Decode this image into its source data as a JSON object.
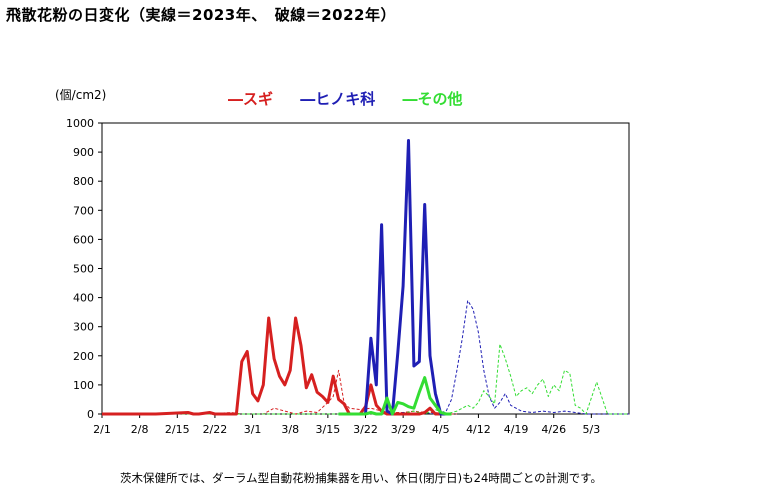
{
  "title": "飛散花粉の日変化（実線＝2023年、　破線＝2022年）",
  "chart_data": {
    "type": "line",
    "unit": "(個/cm2)",
    "ylim": [
      0,
      1000
    ],
    "yticks": [
      0,
      100,
      200,
      300,
      400,
      500,
      600,
      700,
      800,
      900,
      1000
    ],
    "xticks": [
      "2/1",
      "2/8",
      "2/15",
      "2/22",
      "3/1",
      "3/8",
      "3/15",
      "3/22",
      "3/29",
      "4/5",
      "4/12",
      "4/19",
      "4/26",
      "5/3"
    ],
    "x_range_days": [
      0,
      98
    ],
    "grid": false,
    "legend_position": "top",
    "legend": [
      {
        "label": "スギ",
        "color": "#d62020"
      },
      {
        "label": "ヒノキ科",
        "color": "#1f1fb4"
      },
      {
        "label": "その他",
        "color": "#33dd33"
      }
    ],
    "series": [
      {
        "name": "スギ",
        "year": "2023",
        "color": "#d62020",
        "dashed": false,
        "x": [
          0,
          10,
          16,
          17,
          18,
          20,
          21,
          22,
          25,
          26,
          27,
          28,
          29,
          30,
          31,
          32,
          33,
          34,
          35,
          36,
          37,
          38,
          39,
          40,
          41,
          42,
          43,
          44,
          45,
          46,
          47,
          48,
          49,
          50,
          51,
          52,
          53,
          54,
          55,
          56,
          57,
          58,
          59,
          60,
          61,
          62,
          63,
          64,
          65
        ],
        "y": [
          0,
          0,
          5,
          0,
          0,
          5,
          0,
          0,
          0,
          180,
          215,
          70,
          45,
          100,
          330,
          190,
          130,
          100,
          150,
          330,
          235,
          90,
          135,
          75,
          60,
          40,
          130,
          50,
          35,
          0,
          0,
          0,
          25,
          100,
          30,
          10,
          0,
          0,
          0,
          0,
          0,
          0,
          0,
          5,
          20,
          0,
          0,
          0,
          0
        ]
      },
      {
        "name": "ヒノキ科",
        "year": "2023",
        "color": "#1f1fb4",
        "dashed": false,
        "x": [
          44,
          46,
          48,
          49,
          50,
          51,
          52,
          53,
          54,
          55,
          56,
          57,
          58,
          59,
          60,
          61,
          62,
          63,
          64,
          65
        ],
        "y": [
          0,
          0,
          0,
          0,
          260,
          100,
          650,
          10,
          0,
          210,
          440,
          940,
          165,
          180,
          720,
          200,
          70,
          0,
          0,
          0
        ]
      },
      {
        "name": "その他",
        "year": "2023",
        "color": "#33dd33",
        "dashed": false,
        "x": [
          44,
          47,
          48,
          49,
          50,
          51,
          52,
          53,
          54,
          55,
          56,
          57,
          58,
          59,
          60,
          61,
          62,
          63,
          64,
          65
        ],
        "y": [
          0,
          0,
          0,
          0,
          5,
          0,
          0,
          55,
          0,
          40,
          35,
          25,
          20,
          75,
          125,
          55,
          30,
          5,
          0,
          0
        ]
      },
      {
        "name": "スギ",
        "year": "2022",
        "color": "#d62020",
        "dashed": true,
        "x": [
          0,
          20,
          24,
          26,
          28,
          30,
          32,
          35,
          36,
          38,
          40,
          42,
          43,
          44,
          45,
          46,
          48,
          50,
          52,
          54,
          56,
          58,
          60,
          62,
          64,
          66
        ],
        "y": [
          0,
          0,
          5,
          0,
          0,
          0,
          20,
          5,
          0,
          10,
          5,
          40,
          60,
          150,
          40,
          20,
          15,
          20,
          10,
          5,
          5,
          10,
          5,
          5,
          0,
          0
        ]
      },
      {
        "name": "ヒノキ科",
        "year": "2022",
        "color": "#1f1fb4",
        "dashed": true,
        "x": [
          0,
          54,
          56,
          58,
          60,
          62,
          64,
          65,
          66,
          67,
          68,
          69,
          70,
          71,
          72,
          73,
          74,
          75,
          76,
          78,
          80,
          82,
          84,
          86,
          88,
          90,
          92,
          94,
          96,
          98
        ],
        "y": [
          0,
          0,
          5,
          0,
          5,
          0,
          10,
          50,
          150,
          260,
          390,
          360,
          280,
          150,
          60,
          20,
          40,
          70,
          30,
          10,
          5,
          10,
          5,
          10,
          5,
          0,
          0,
          0,
          0,
          0
        ],
        "note": "ends at 4/26"
      },
      {
        "name": "その他",
        "year": "2022",
        "color": "#33dd33",
        "dashed": true,
        "x": [
          0,
          55,
          58,
          60,
          62,
          64,
          66,
          68,
          69,
          70,
          71,
          72,
          73,
          74,
          75,
          76,
          77,
          78,
          79,
          80,
          81,
          82,
          83,
          84,
          85,
          86,
          87,
          88,
          89,
          90,
          92,
          94,
          96,
          98
        ],
        "y": [
          0,
          0,
          10,
          0,
          15,
          0,
          10,
          30,
          20,
          40,
          80,
          60,
          35,
          240,
          190,
          130,
          60,
          80,
          90,
          70,
          100,
          120,
          60,
          100,
          80,
          150,
          140,
          30,
          20,
          0,
          110,
          0,
          0,
          0
        ]
      }
    ]
  },
  "footnote": "茨木保健所では、ダーラム型自動花粉捕集器を用い、休日(閉庁日)も24時間ごとの計測です。"
}
